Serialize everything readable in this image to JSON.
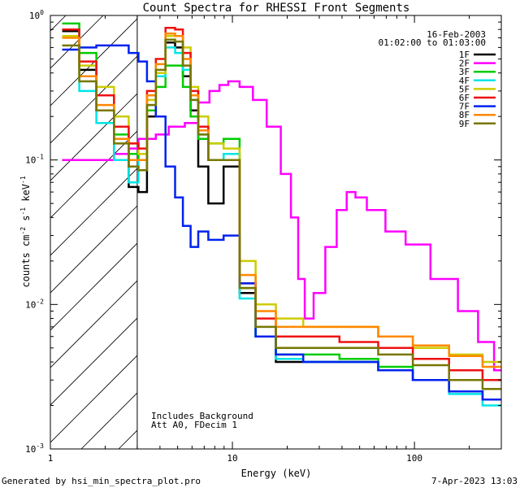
{
  "chart_data": {
    "type": "line",
    "title": "Count Spectra for RHESSI Front Segments",
    "xlabel": "Energy (keV)",
    "ylabel": "counts cm^-2 s^-1 keV^-1",
    "xscale": "log",
    "yscale": "log",
    "xlim": [
      1,
      300
    ],
    "ylim": [
      0.001,
      1
    ],
    "x_ticks": [
      "1",
      "10",
      "100"
    ],
    "y_ticks": [
      "10^-3",
      "10^-2",
      "10^-1",
      "10^0"
    ],
    "date": "16-Feb-2003",
    "time_range": "01:02:00 to 01:03:00",
    "annotations": [
      "Includes Background",
      "Att A0, FDecim 1"
    ],
    "shaded_region_kev": [
      1,
      3
    ],
    "threshold_kev": 3,
    "series": [
      {
        "name": "1F",
        "color": "#000000",
        "x": [
          1.3,
          1.6,
          2.0,
          2.5,
          2.9,
          3.2,
          3.6,
          4.0,
          4.6,
          5.1,
          5.6,
          6.2,
          6.8,
          8,
          10,
          12,
          15,
          20,
          30,
          50,
          80,
          120,
          200,
          280
        ],
        "values": [
          0.78,
          0.42,
          0.22,
          0.11,
          0.065,
          0.06,
          0.2,
          0.38,
          0.65,
          0.6,
          0.38,
          0.22,
          0.09,
          0.05,
          0.09,
          0.012,
          0.006,
          0.004,
          0.004,
          0.004,
          0.0035,
          0.003,
          0.0025,
          0.0022
        ]
      },
      {
        "name": "2F",
        "color": "#ff00ff",
        "x": [
          1.3,
          2.0,
          2.5,
          2.9,
          3.2,
          3.6,
          4.0,
          5.0,
          6.0,
          7.0,
          8.0,
          9.0,
          10,
          12,
          14,
          17,
          20,
          22,
          24,
          26,
          30,
          35,
          40,
          45,
          50,
          60,
          80,
          100,
          150,
          200,
          250,
          300
        ],
        "values": [
          0.1,
          0.1,
          0.11,
          0.12,
          0.14,
          0.14,
          0.15,
          0.17,
          0.18,
          0.25,
          0.3,
          0.33,
          0.35,
          0.32,
          0.26,
          0.17,
          0.08,
          0.04,
          0.015,
          0.008,
          0.012,
          0.025,
          0.045,
          0.06,
          0.055,
          0.045,
          0.032,
          0.026,
          0.015,
          0.009,
          0.0055,
          0.0035
        ]
      },
      {
        "name": "3F",
        "color": "#00cc00",
        "x": [
          1.3,
          1.6,
          2.0,
          2.5,
          2.9,
          3.2,
          3.6,
          4.0,
          4.6,
          5.1,
          5.6,
          6.2,
          6.8,
          8,
          10,
          12,
          15,
          20,
          30,
          50,
          80,
          120,
          200,
          280
        ],
        "values": [
          0.88,
          0.55,
          0.28,
          0.15,
          0.11,
          0.1,
          0.22,
          0.32,
          0.45,
          0.45,
          0.32,
          0.2,
          0.14,
          0.13,
          0.14,
          0.013,
          0.006,
          0.0045,
          0.0045,
          0.0042,
          0.0037,
          0.003,
          0.0025,
          0.0022
        ]
      },
      {
        "name": "4F",
        "color": "#00e5e5",
        "x": [
          1.3,
          1.6,
          2.0,
          2.5,
          2.9,
          3.2,
          3.6,
          4.0,
          4.6,
          5.1,
          5.6,
          6.2,
          6.8,
          8,
          10,
          12,
          15,
          20,
          30,
          50,
          80,
          120,
          200,
          280
        ],
        "values": [
          0.8,
          0.3,
          0.18,
          0.1,
          0.07,
          0.1,
          0.24,
          0.38,
          0.6,
          0.55,
          0.42,
          0.26,
          0.15,
          0.1,
          0.11,
          0.011,
          0.006,
          0.0042,
          0.004,
          0.004,
          0.0035,
          0.003,
          0.0024,
          0.002
        ]
      },
      {
        "name": "5F",
        "color": "#cccc00",
        "x": [
          1.3,
          1.6,
          2.0,
          2.5,
          2.9,
          3.2,
          3.6,
          4.0,
          4.6,
          5.1,
          5.6,
          6.2,
          6.8,
          8,
          10,
          12,
          15,
          20,
          30,
          50,
          80,
          120,
          200,
          280
        ],
        "values": [
          0.72,
          0.45,
          0.32,
          0.2,
          0.13,
          0.11,
          0.26,
          0.4,
          0.72,
          0.72,
          0.6,
          0.32,
          0.2,
          0.13,
          0.12,
          0.02,
          0.01,
          0.008,
          0.007,
          0.007,
          0.006,
          0.005,
          0.0045,
          0.004
        ]
      },
      {
        "name": "6F",
        "color": "#ee1111",
        "x": [
          1.3,
          1.6,
          2.0,
          2.5,
          2.9,
          3.2,
          3.6,
          4.0,
          4.6,
          5.1,
          5.6,
          6.2,
          6.8,
          8,
          10,
          12,
          15,
          20,
          30,
          50,
          80,
          120,
          200,
          280
        ],
        "values": [
          0.8,
          0.48,
          0.28,
          0.17,
          0.13,
          0.12,
          0.3,
          0.5,
          0.82,
          0.8,
          0.55,
          0.3,
          0.17,
          0.1,
          0.1,
          0.014,
          0.008,
          0.006,
          0.006,
          0.0055,
          0.005,
          0.0042,
          0.0035,
          0.003
        ]
      },
      {
        "name": "7F",
        "color": "#0022ee",
        "x": [
          1.3,
          1.6,
          2.0,
          2.5,
          2.9,
          3.2,
          3.6,
          4.0,
          4.6,
          5.1,
          5.6,
          6.2,
          6.8,
          8,
          10,
          12,
          15,
          20,
          30,
          50,
          80,
          120,
          200,
          280
        ],
        "values": [
          0.58,
          0.6,
          0.62,
          0.62,
          0.55,
          0.48,
          0.35,
          0.2,
          0.09,
          0.055,
          0.035,
          0.025,
          0.032,
          0.028,
          0.03,
          0.014,
          0.006,
          0.0045,
          0.004,
          0.004,
          0.0035,
          0.003,
          0.0025,
          0.0022
        ]
      },
      {
        "name": "8F",
        "color": "#ff8800",
        "x": [
          1.3,
          1.6,
          2.0,
          2.5,
          2.9,
          3.2,
          3.6,
          4.0,
          4.6,
          5.1,
          5.6,
          6.2,
          6.8,
          8,
          10,
          12,
          15,
          20,
          30,
          50,
          80,
          120,
          200,
          280
        ],
        "values": [
          0.7,
          0.38,
          0.24,
          0.14,
          0.1,
          0.1,
          0.28,
          0.46,
          0.75,
          0.72,
          0.5,
          0.28,
          0.16,
          0.1,
          0.1,
          0.016,
          0.009,
          0.007,
          0.007,
          0.007,
          0.006,
          0.0052,
          0.0044,
          0.0037
        ]
      },
      {
        "name": "9F",
        "color": "#777700",
        "x": [
          1.3,
          1.6,
          2.0,
          2.5,
          2.9,
          3.2,
          3.6,
          4.0,
          4.6,
          5.1,
          5.6,
          6.2,
          6.8,
          8,
          10,
          12,
          15,
          20,
          30,
          50,
          80,
          120,
          200,
          280
        ],
        "values": [
          0.62,
          0.35,
          0.22,
          0.13,
          0.09,
          0.085,
          0.24,
          0.42,
          0.68,
          0.66,
          0.45,
          0.26,
          0.15,
          0.1,
          0.1,
          0.013,
          0.007,
          0.005,
          0.005,
          0.005,
          0.0045,
          0.0038,
          0.003,
          0.0026
        ]
      }
    ]
  },
  "footer": {
    "generated_by": "Generated by hsi_min_spectra_plot.pro",
    "timestamp": "7-Apr-2023 13:03"
  }
}
